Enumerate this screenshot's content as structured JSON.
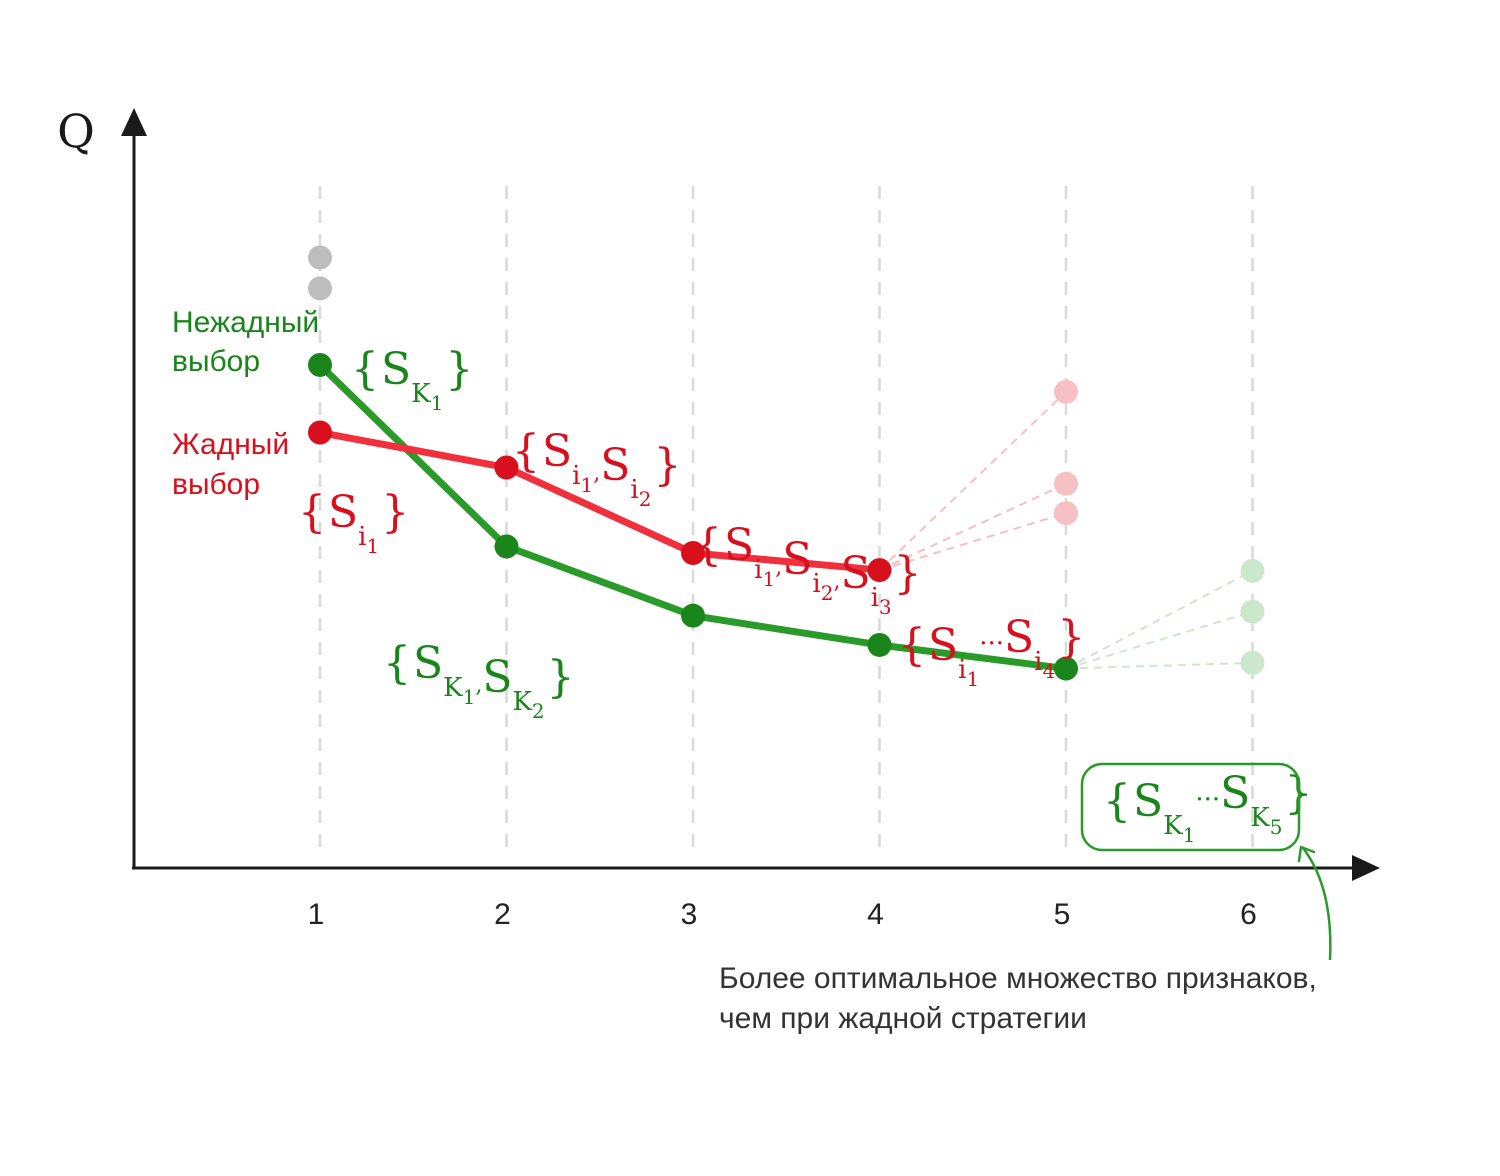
{
  "colors": {
    "axis": "#1a1a1a",
    "grid": "#d9d9d9",
    "greedy": "#f0303c",
    "greedy_point": "#d8101e",
    "greedy_text": "#d8101e",
    "greedy_faded": "#f6c0c4",
    "nongreedy": "#2a9a2a",
    "nongreedy_point": "#1a851a",
    "nongreedy_text": "#1a851a",
    "nongreedy_faded": "#cce8cc",
    "gray_point": "#bdbdbd",
    "annotation_text": "#333333"
  },
  "chart_data": {
    "type": "line",
    "ylabel": "Q",
    "x_ticks": [
      "1",
      "2",
      "3",
      "4",
      "5",
      "6"
    ],
    "y_axis_values_printed": false,
    "series": [
      {
        "name": "Жадный выбор",
        "x": [
          1,
          2,
          3,
          4
        ],
        "y": [
          5.35,
          4.92,
          3.87,
          3.66
        ],
        "branches": {
          "from_x": 4,
          "to_x": 5,
          "y": [
            5.85,
            4.72,
            4.36
          ]
        }
      },
      {
        "name": "Нежадный выбор",
        "x": [
          1,
          2,
          3,
          4,
          5
        ],
        "y": [
          6.18,
          3.95,
          3.1,
          2.74,
          2.45
        ],
        "branches": {
          "from_x": 5,
          "to_x": 6,
          "y": [
            3.65,
            3.15,
            2.52
          ]
        }
      }
    ],
    "unselected_points": [
      {
        "x": 1,
        "y": 7.5
      },
      {
        "x": 1,
        "y": 7.12
      }
    ]
  },
  "labels": {
    "nongreedy_title": [
      "Нежадный",
      "выбор"
    ],
    "greedy_title": [
      "Жадный",
      "выбор"
    ],
    "greedy_sets": [
      {
        "at": 1,
        "main": "S",
        "subs": [
          "i",
          "1"
        ]
      },
      {
        "at": 2,
        "terms": [
          [
            "S",
            "i",
            "1"
          ],
          [
            "S",
            "i",
            "2"
          ]
        ],
        "sep": ","
      },
      {
        "at": 3,
        "terms": [
          [
            "S",
            "i",
            "1"
          ],
          [
            "S",
            "i",
            "2"
          ],
          [
            "S",
            "i",
            "3"
          ]
        ],
        "sep": ","
      },
      {
        "at": 4,
        "terms": [
          [
            "S",
            "i",
            "1"
          ],
          [
            "S",
            "i",
            "4"
          ]
        ],
        "sep": "···"
      }
    ],
    "nongreedy_sets": [
      {
        "at": 1,
        "terms": [
          [
            "S",
            "K",
            "1"
          ]
        ]
      },
      {
        "at": 2,
        "terms": [
          [
            "S",
            "K",
            "1"
          ],
          [
            "S",
            "K",
            "2"
          ]
        ],
        "sep": ","
      },
      {
        "at": 5,
        "terms": [
          [
            "S",
            "K",
            "1"
          ],
          [
            "S",
            "K",
            "5"
          ]
        ],
        "sep": "···"
      }
    ]
  },
  "annotation": {
    "line1": "Более оптимальное множество признаков,",
    "line2": "чем при жадной стратегии"
  }
}
